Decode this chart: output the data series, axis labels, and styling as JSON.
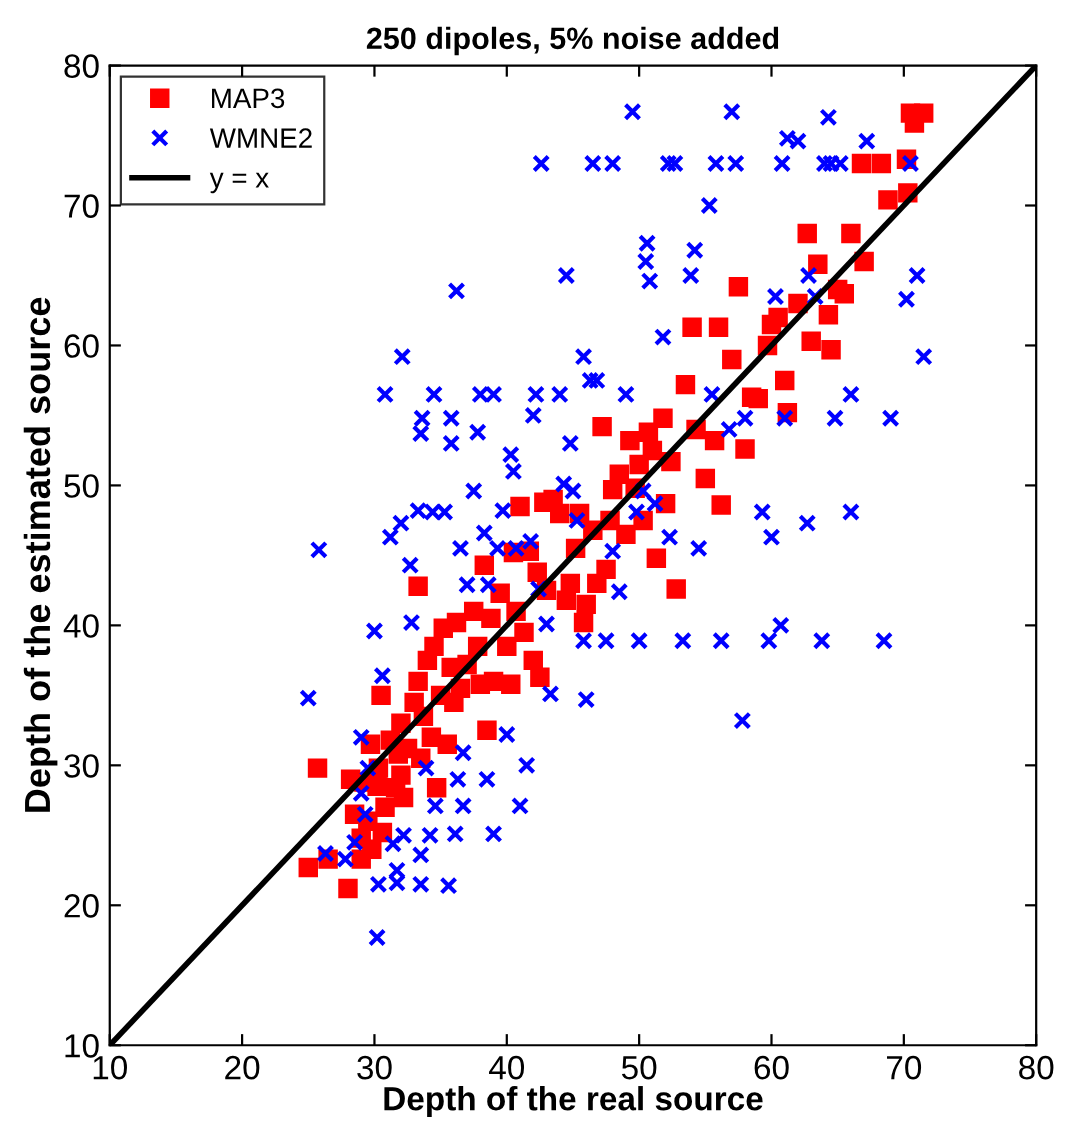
{
  "chart_data": {
    "type": "scatter",
    "title": "250 dipoles, 5% noise added",
    "xlabel": "Depth of the real source",
    "ylabel": "Depth of the estimated source",
    "xlim": [
      10,
      80
    ],
    "ylim": [
      10,
      80
    ],
    "xticks": [
      10,
      20,
      30,
      40,
      50,
      60,
      70,
      80
    ],
    "yticks": [
      10,
      20,
      30,
      40,
      50,
      60,
      70,
      80
    ],
    "grid": false,
    "legend": "top left",
    "series": [
      {
        "name": "MAP3",
        "color": "#ff0000",
        "marker": "square",
        "x": [
          25,
          25.7,
          26.5,
          28,
          28.2,
          28.5,
          29,
          29,
          29.2,
          29.5,
          29.7,
          29.8,
          30.2,
          30.3,
          30.5,
          30.6,
          30.8,
          31.2,
          31.6,
          31.8,
          32,
          32,
          32.2,
          32.5,
          33,
          33.3,
          33.5,
          33.3,
          33.7,
          34,
          34.3,
          34.5,
          34.7,
          35,
          35.2,
          35.5,
          35.8,
          36,
          36.2,
          36.5,
          37,
          37.5,
          37.8,
          38,
          38.3,
          38.5,
          38.8,
          39,
          39.5,
          40,
          40.3,
          40.5,
          40.7,
          41,
          41.3,
          41.7,
          42,
          42.3,
          42.5,
          42.8,
          43,
          43.5,
          44,
          44.5,
          44.8,
          45.2,
          45.5,
          45.8,
          46,
          46.5,
          46.8,
          47.2,
          47.5,
          47.8,
          48,
          48.5,
          49,
          49.3,
          49.7,
          50,
          50.3,
          50.7,
          51,
          51.3,
          51.8,
          52,
          52.4,
          52.8,
          53.5,
          54,
          54.3,
          55,
          55.7,
          56,
          56.2,
          57,
          57.5,
          58,
          58.5,
          59,
          59.7,
          60,
          60.5,
          61,
          61.2,
          62,
          62.7,
          63,
          63.5,
          64.3,
          64.5,
          65,
          65.5,
          66,
          67,
          66.8,
          68.3,
          68.8,
          70.2,
          70.3,
          70.5,
          70.8,
          71.5
        ],
        "values": [
          22.7,
          29.8,
          23.3,
          21.2,
          29,
          26.5,
          23.3,
          24.8,
          28.8,
          26,
          31.5,
          24,
          28.5,
          29.8,
          35,
          25.2,
          27,
          31.8,
          28.4,
          30.8,
          29.3,
          33,
          27.7,
          31.2,
          34.5,
          42.8,
          30.5,
          36,
          33.5,
          37.5,
          32,
          38.5,
          28.4,
          35,
          39.8,
          31.5,
          37,
          34.5,
          40.2,
          35.5,
          37.2,
          41,
          38.5,
          35.8,
          44.3,
          32.5,
          40.5,
          36,
          42.3,
          38.5,
          35.8,
          45.2,
          41,
          48.5,
          39.5,
          45.3,
          37.5,
          43.8,
          36.3,
          48.8,
          42.5,
          49,
          48,
          41.8,
          43,
          45.5,
          48,
          40.2,
          41.5,
          46.8,
          43,
          54.2,
          44,
          47.5,
          49.7,
          50.8,
          46.5,
          53.2,
          49.8,
          51.5,
          47.5,
          53.8,
          52.5,
          44.8,
          54.8,
          48.7,
          51.7,
          42.6,
          57.2,
          61.3,
          54,
          50.5,
          53.2,
          61.3,
          48.6,
          59,
          64.2,
          52.6,
          56.3,
          56.2,
          60,
          61.5,
          62,
          57.5,
          55.2,
          63,
          68,
          60.3,
          65.8,
          62.2,
          59.7,
          64,
          63.7,
          68,
          66,
          73,
          73,
          70.4,
          73.3,
          70.9,
          76.6,
          75.9,
          76.6
        ]
      },
      {
        "name": "WMNE2",
        "color": "#0000ff",
        "marker": "cross",
        "x": [
          25,
          25.8,
          26.3,
          27.8,
          28.5,
          29,
          29,
          29.3,
          29.5,
          30.2,
          30,
          30.3,
          30.6,
          30.8,
          31.2,
          31.4,
          31.7,
          31.7,
          32,
          32.1,
          32.2,
          32.7,
          32.8,
          33.3,
          33.5,
          33.5,
          33.5,
          33.6,
          33.9,
          34.2,
          34.4,
          34.5,
          34.6,
          35.3,
          35.6,
          35.8,
          35.8,
          36.2,
          36.1,
          36.3,
          36.5,
          36.7,
          36.7,
          37,
          37.5,
          37.8,
          38,
          38.3,
          38.5,
          38.6,
          39,
          39,
          39.3,
          39.7,
          40,
          40.3,
          40.5,
          40.7,
          41,
          41.5,
          41.8,
          42,
          42.2,
          42.4,
          42.6,
          43,
          43.3,
          44,
          44.3,
          44.5,
          44.8,
          45,
          45.3,
          45.8,
          45.8,
          46,
          46.3,
          46.8,
          46.5,
          47.5,
          48,
          48,
          48.5,
          49,
          49.5,
          49.8,
          50,
          50.3,
          50.5,
          50.6,
          50.8,
          51.2,
          51.8,
          52.2,
          52.3,
          52.7,
          53.3,
          53.9,
          54.2,
          54.5,
          55.3,
          55.5,
          55.8,
          56.2,
          56.8,
          57,
          57.3,
          57.8,
          58,
          59.3,
          59.8,
          60,
          60.3,
          60.7,
          60.8,
          61,
          61.2,
          62,
          62.7,
          62.8,
          63.3,
          63.8,
          64,
          64.3,
          64.5,
          64.8,
          65.2,
          66,
          66,
          67.2,
          68.5,
          69,
          70.2,
          70.5,
          71,
          71.5
        ],
        "values": [
          34.8,
          45.4,
          23.7,
          23.3,
          24.5,
          32,
          28,
          26.5,
          29.8,
          17.7,
          39.6,
          21.5,
          36.4,
          56.5,
          46.3,
          24.4,
          22.5,
          21.6,
          47.3,
          59.2,
          25,
          44.3,
          40.2,
          48.2,
          53.7,
          21.5,
          23.6,
          54.8,
          29.8,
          25,
          48.1,
          56.5,
          27.1,
          48.1,
          21.4,
          54.8,
          53,
          63.9,
          25.1,
          29,
          45.5,
          27.1,
          30.9,
          42.9,
          49.6,
          53.8,
          56.5,
          46.6,
          29,
          42.9,
          56.5,
          25.1,
          45.5,
          48.2,
          32.2,
          52.2,
          51,
          45.5,
          27.1,
          30,
          46,
          55,
          56.5,
          42.6,
          73,
          40.1,
          35.1,
          56.5,
          50.1,
          65,
          53,
          49.6,
          47.5,
          59.2,
          38.9,
          34.7,
          57.5,
          57.5,
          73,
          38.9,
          73,
          45.3,
          42.4,
          56.5,
          76.7,
          48.1,
          38.9,
          49.6,
          66,
          67.3,
          64.6,
          48.7,
          60.6,
          73,
          46.3,
          73,
          38.9,
          65,
          66.8,
          45.5,
          70,
          56.5,
          73,
          38.9,
          54,
          76.7,
          73,
          33.2,
          54.8,
          48.1,
          38.9,
          46.3,
          63.5,
          40,
          73,
          54.8,
          74.8,
          74.6,
          47.3,
          65,
          63.5,
          38.9,
          73,
          76.3,
          73,
          54.8,
          73,
          56.5,
          48.1,
          74.6,
          38.9,
          54.8,
          63.3,
          73,
          65,
          59.2
        ]
      },
      {
        "name": "y = x",
        "type": "line",
        "color": "#000000",
        "marker": "none",
        "line_style": "solid",
        "x": [
          10,
          80
        ],
        "values": [
          10,
          80
        ]
      }
    ]
  }
}
